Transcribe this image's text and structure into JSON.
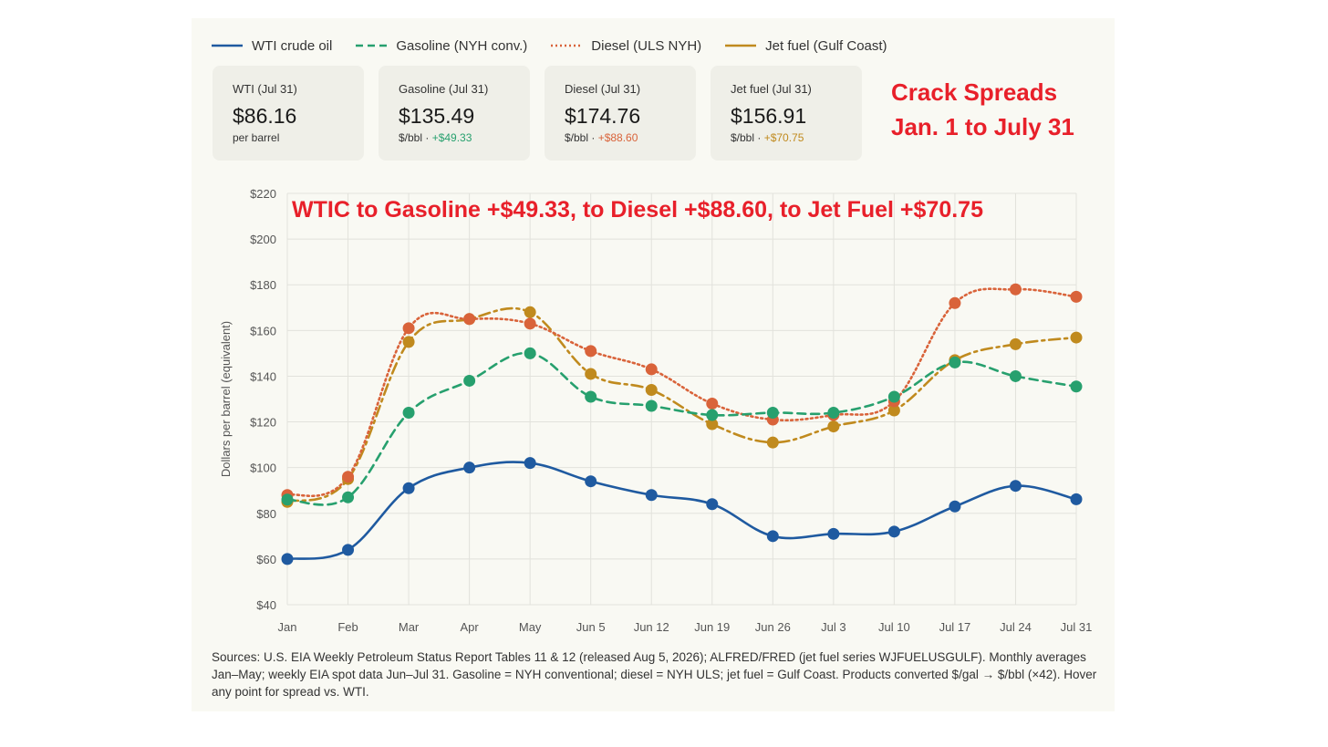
{
  "legend": [
    {
      "name": "WTI crude oil",
      "color": "#1f5aa0",
      "dash": "solid"
    },
    {
      "name": "Gasoline (NYH conv.)",
      "color": "#27a06e",
      "dash": "dashed"
    },
    {
      "name": "Diesel (ULS NYH)",
      "color": "#d9633a",
      "dash": "dotted"
    },
    {
      "name": "Jet fuel (Gulf Coast)",
      "color": "#c08a1e",
      "dash": "dashdot"
    }
  ],
  "cards": [
    {
      "label": "WTI (Jul 31)",
      "value": "$86.16",
      "sub": "per barrel",
      "delta": "",
      "delta_color": "#333333"
    },
    {
      "label": "Gasoline (Jul 31)",
      "value": "$135.49",
      "sub": "$/bbl · ",
      "delta": "+$49.33",
      "delta_color": "#27a06e"
    },
    {
      "label": "Diesel (Jul 31)",
      "value": "$174.76",
      "sub": "$/bbl · ",
      "delta": "+$88.60",
      "delta_color": "#d9633a"
    },
    {
      "label": "Jet fuel (Jul 31)",
      "value": "$156.91",
      "sub": "$/bbl · ",
      "delta": "+$70.75",
      "delta_color": "#c08a1e"
    }
  ],
  "headline": {
    "line1": "Crack Spreads",
    "line2": "Jan. 1 to July 31"
  },
  "footnote": "Sources: U.S. EIA Weekly Petroleum Status Report Tables 11 & 12 (released Aug 5, 2026); ALFRED/FRED (jet fuel series WJFUELUSGULF). Monthly averages Jan–May; weekly EIA spot data Jun–Jul 31. Gasoline = NYH conventional; diesel = NYH ULS; jet fuel = Gulf Coast. Products converted $/gal → $/bbl (×42). Hover any point for spread vs. WTI.",
  "chart_data": {
    "type": "line",
    "title": "WTIC to Gasoline +$49.33,  to Diesel +$88.60,  to Jet Fuel +$70.75",
    "ylabel": "Dollars per barrel (equivalent)",
    "xlabel": "",
    "ylim": [
      40,
      220
    ],
    "yticks": [
      40,
      60,
      80,
      100,
      120,
      140,
      160,
      180,
      200,
      220
    ],
    "ytick_labels": [
      "$40",
      "$60",
      "$80",
      "$100",
      "$120",
      "$140",
      "$160",
      "$180",
      "$200",
      "$220"
    ],
    "grid": true,
    "legend_position": "top-left",
    "categories": [
      "Jan",
      "Feb",
      "Mar",
      "Apr",
      "May",
      "Jun 5",
      "Jun 12",
      "Jun 19",
      "Jun 26",
      "Jul 3",
      "Jul 10",
      "Jul 17",
      "Jul 24",
      "Jul 31"
    ],
    "series": [
      {
        "name": "WTI crude oil",
        "color": "#1f5aa0",
        "dash": "solid",
        "values": [
          60,
          64,
          91,
          100,
          102,
          94,
          88,
          84,
          70,
          71,
          72,
          83,
          92,
          86.16
        ]
      },
      {
        "name": "Gasoline (NYH conv.)",
        "color": "#27a06e",
        "dash": "dashed",
        "values": [
          86,
          87,
          124,
          138,
          150,
          131,
          127,
          123,
          124,
          124,
          131,
          146,
          140,
          135.49
        ]
      },
      {
        "name": "Diesel (ULS NYH)",
        "color": "#d9633a",
        "dash": "dotted",
        "values": [
          88,
          96,
          161,
          165,
          163,
          151,
          143,
          128,
          121,
          123,
          129,
          172,
          178,
          174.76
        ]
      },
      {
        "name": "Jet fuel (Gulf Coast)",
        "color": "#c08a1e",
        "dash": "dashdot",
        "values": [
          85,
          95,
          155,
          165,
          168,
          141,
          134,
          119,
          111,
          118,
          125,
          147,
          154,
          156.91
        ]
      }
    ]
  }
}
